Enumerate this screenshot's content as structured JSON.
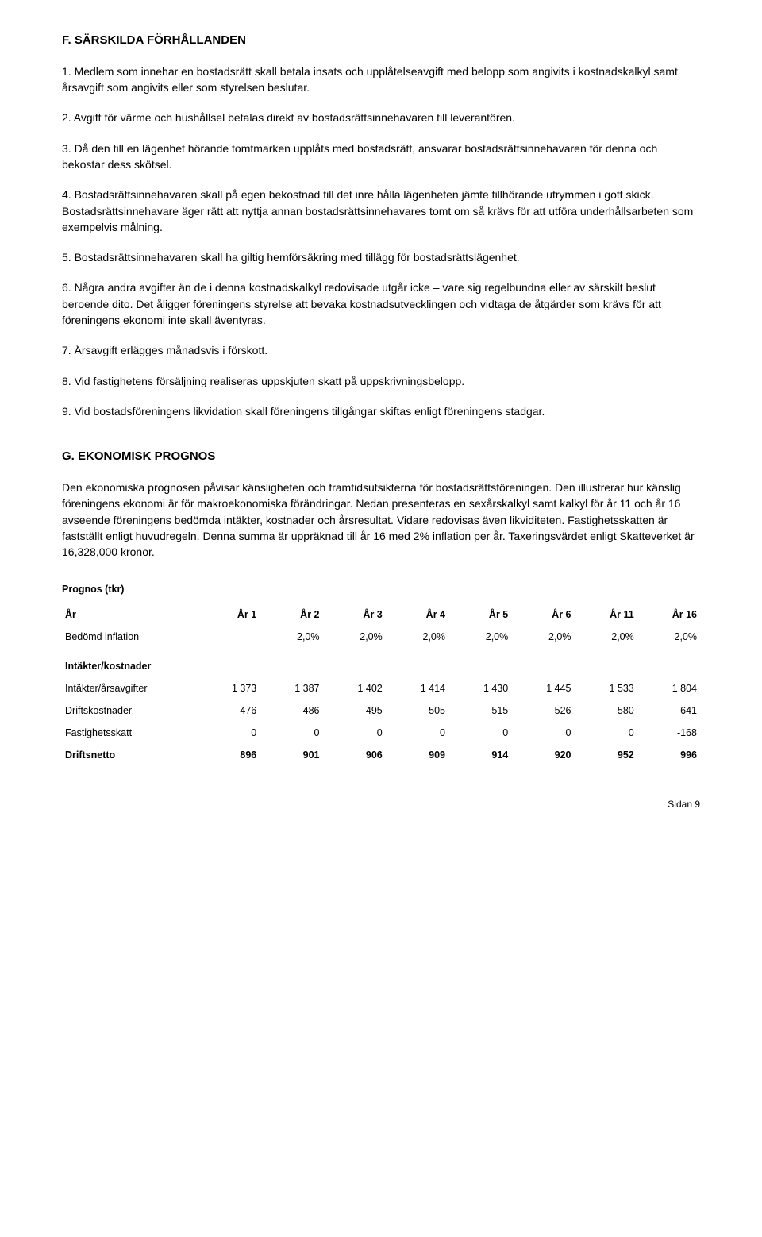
{
  "section_f": {
    "heading": "F. SÄRSKILDA FÖRHÅLLANDEN",
    "items": [
      "1. Medlem som innehar en bostadsrätt skall betala insats och upplåtelseavgift med belopp som angivits i kostnadskalkyl samt årsavgift som angivits eller som styrelsen beslutar.",
      "2. Avgift för värme och hushållsel betalas direkt av bostadsrättsinnehavaren till leverantören.",
      "3. Då den till en lägenhet hörande tomtmarken upplåts med bostadsrätt, ansvarar bostadsrättsinnehavaren för denna och bekostar dess skötsel.",
      "4. Bostadsrättsinnehavaren skall på egen bekostnad till det inre hålla lägenheten jämte tillhörande utrymmen i gott skick. Bostadsrättsinnehavare äger rätt att nyttja annan bostadsrättsinnehavares tomt om så krävs för att utföra underhållsarbeten som exempelvis målning.",
      "5. Bostadsrättsinnehavaren skall ha giltig hemförsäkring med tillägg för bostadsrättslägenhet.",
      "6. Några andra avgifter än de i denna kostnadskalkyl redovisade utgår icke – vare sig regelbundna eller av särskilt beslut beroende dito. Det åligger föreningens styrelse att bevaka kostnadsutvecklingen och vidtaga de åtgärder som krävs för att föreningens ekonomi inte skall äventyras.",
      "7. Årsavgift erlägges månadsvis i förskott.",
      "8. Vid fastighetens försäljning realiseras uppskjuten skatt på uppskrivningsbelopp.",
      "9. Vid bostadsföreningens likvidation skall föreningens tillgångar skiftas enligt föreningens stadgar."
    ]
  },
  "section_g": {
    "heading": "G. EKONOMISK PROGNOS",
    "body": "Den ekonomiska prognosen påvisar känsligheten och framtidsutsikterna för bostadsrättsföreningen. Den illustrerar hur känslig föreningens ekonomi är för makroekonomiska förändringar. Nedan presenteras en sexårskalkyl samt kalkyl för år 11 och år 16 avseende föreningens bedömda intäkter, kostnader och årsresultat. Vidare redovisas även likviditeten. Fastighetsskatten är fastställt enligt huvudregeln. Denna summa är uppräknad till år 16 med 2% inflation per år. Taxeringsvärdet enligt Skatteverket är 16,328,000 kronor."
  },
  "table": {
    "title": "Prognos (tkr)",
    "col_headers": [
      "År",
      "År 1",
      "År 2",
      "År 3",
      "År 4",
      "År 5",
      "År 6",
      "År 11",
      "År 16"
    ],
    "inflation_row": [
      "Bedömd inflation",
      "2,0%",
      "2,0%",
      "2,0%",
      "2,0%",
      "2,0%",
      "2,0%",
      "2,0%"
    ],
    "subheading": "Intäkter/kostnader",
    "rows": [
      [
        "Intäkter/årsavgifter",
        "1 373",
        "1 387",
        "1 402",
        "1 414",
        "1 430",
        "1 445",
        "1 533",
        "1 804"
      ],
      [
        "Driftskostnader",
        "-476",
        "-486",
        "-495",
        "-505",
        "-515",
        "-526",
        "-580",
        "-641"
      ],
      [
        "Fastighetsskatt",
        "0",
        "0",
        "0",
        "0",
        "0",
        "0",
        "0",
        "-168"
      ]
    ],
    "total_row": [
      "Driftsnetto",
      "896",
      "901",
      "906",
      "909",
      "914",
      "920",
      "952",
      "996"
    ]
  },
  "footer": "Sidan 9",
  "colors": {
    "text": "#000000",
    "background": "#ffffff"
  }
}
